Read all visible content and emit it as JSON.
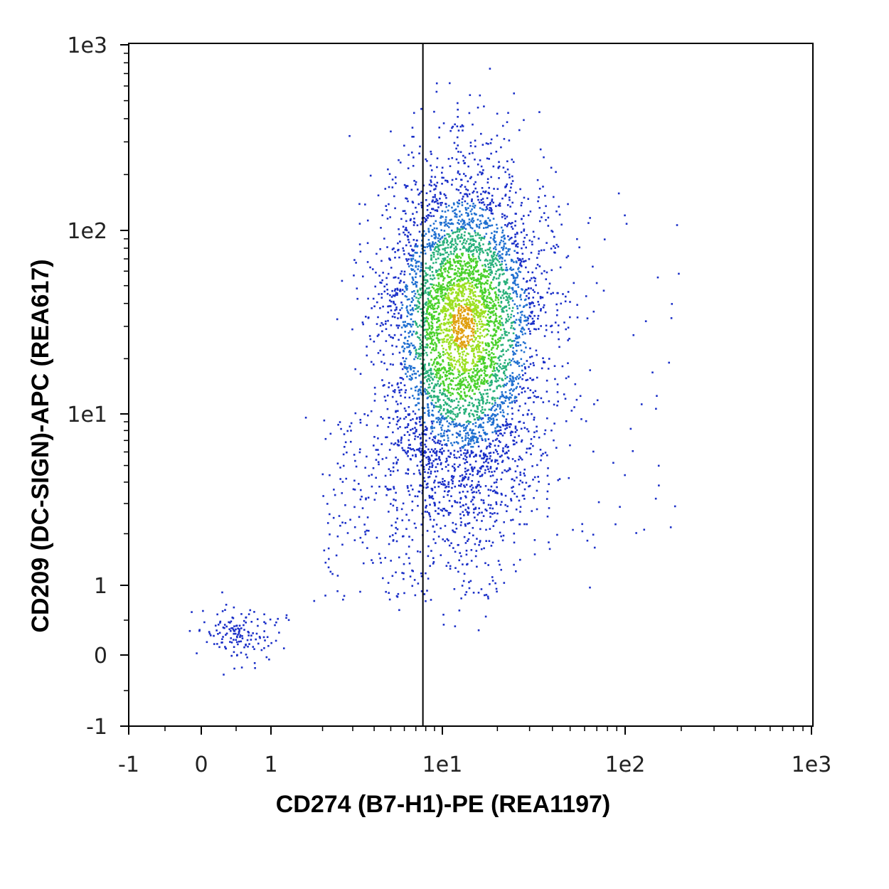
{
  "chart_data": {
    "type": "scatter",
    "title": "",
    "xlabel": "CD274 (B7-H1)-PE (REA1197)",
    "ylabel": "CD209 (DC-SIGN)-APC (REA617)",
    "x_scale": "biexponential (linear near 0, log above)",
    "y_scale": "biexponential (linear near 0, log above)",
    "xlim": [
      -1,
      1000
    ],
    "ylim": [
      -1,
      1000
    ],
    "x_ticks": [
      {
        "value": -1,
        "label": "-1"
      },
      {
        "value": 0,
        "label": "0"
      },
      {
        "value": 1,
        "label": "1"
      },
      {
        "value": 10,
        "label": "1e1"
      },
      {
        "value": 100,
        "label": "1e2"
      },
      {
        "value": 1000,
        "label": "1e3"
      }
    ],
    "y_ticks": [
      {
        "value": -1,
        "label": "-1"
      },
      {
        "value": 0,
        "label": "0"
      },
      {
        "value": 1,
        "label": "1"
      },
      {
        "value": 10,
        "label": "1e1"
      },
      {
        "value": 100,
        "label": "1e2"
      },
      {
        "value": 1000,
        "label": "1e3"
      }
    ],
    "gate": {
      "type": "vertical line",
      "x": 7.7
    },
    "color_scale": [
      "#1a2fc8",
      "#1f6fd0",
      "#28b07a",
      "#49d12a",
      "#9be020",
      "#e0a010",
      "#d81a1a"
    ],
    "populations": [
      {
        "description": "main dense population",
        "x_center": 13,
        "y_center": 30,
        "x_spread_decades": 0.22,
        "y_spread_decades": 0.42,
        "fraction": 0.9
      },
      {
        "description": "low double-negative cluster",
        "x_center": 0.55,
        "y_center": 0.3,
        "fraction": 0.03
      }
    ],
    "grid": false,
    "legend": "none"
  }
}
